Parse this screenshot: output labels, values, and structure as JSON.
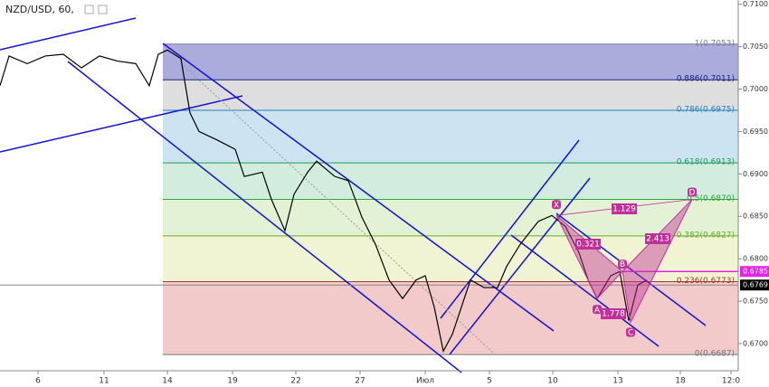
{
  "chart_data": {
    "type": "line",
    "title": "NZD/USD, 60,",
    "color": "#000000",
    "x": [
      0,
      1,
      3,
      5,
      7,
      9,
      11,
      13,
      15,
      16.5,
      17.5,
      18.5,
      20,
      21,
      22,
      24,
      26,
      27,
      29,
      30,
      31.5,
      32.5,
      34,
      35,
      37,
      38.5,
      40,
      41.5,
      43,
      44.5,
      46,
      47,
      48,
      49,
      50,
      51,
      52,
      53.5,
      55,
      56,
      57.5,
      59.5,
      61,
      62.5,
      64,
      65,
      66,
      67.5,
      68.5,
      69.5,
      70.5,
      71.5
    ],
    "values": [
      0.7004,
      0.7039,
      0.703,
      0.7039,
      0.7041,
      0.7025,
      0.7039,
      0.7033,
      0.703,
      0.7004,
      0.7041,
      0.7046,
      0.7036,
      0.6972,
      0.695,
      0.694,
      0.6929,
      0.6897,
      0.6902,
      0.687,
      0.6833,
      0.6876,
      0.6902,
      0.6915,
      0.6897,
      0.6892,
      0.6849,
      0.6817,
      0.6775,
      0.6753,
      0.6775,
      0.678,
      0.6743,
      0.6691,
      0.6711,
      0.6743,
      0.6775,
      0.6766,
      0.6766,
      0.6791,
      0.6817,
      0.6844,
      0.6851,
      0.6838,
      0.6807,
      0.6775,
      0.6753,
      0.678,
      0.6785,
      0.6727,
      0.6769,
      0.6775
    ],
    "xlim": [
      0,
      81.6
    ],
    "ylim": [
      0.6668,
      0.7105
    ],
    "xticks": [
      {
        "value": 4.2,
        "label": "6"
      },
      {
        "value": 11.5,
        "label": "11"
      },
      {
        "value": 18.5,
        "label": "14"
      },
      {
        "value": 25.7,
        "label": "19"
      },
      {
        "value": 32.7,
        "label": "22"
      },
      {
        "value": 39.8,
        "label": "27"
      },
      {
        "value": 47,
        "label": "Июл"
      },
      {
        "value": 54.1,
        "label": "5"
      },
      {
        "value": 61.1,
        "label": "10"
      },
      {
        "value": 68.3,
        "label": "13"
      },
      {
        "value": 75.2,
        "label": "18"
      },
      {
        "value": 80.8,
        "label": "12:0"
      }
    ],
    "yticks": [
      {
        "value": 0.67,
        "label": "0.6700"
      },
      {
        "value": 0.675,
        "label": "0.6750"
      },
      {
        "value": 0.68,
        "label": "0.6800"
      },
      {
        "value": 0.685,
        "label": "0.6850"
      },
      {
        "value": 0.69,
        "label": "0.6900"
      },
      {
        "value": 0.695,
        "label": "0.6950"
      },
      {
        "value": 0.7,
        "label": "0.7000"
      },
      {
        "value": 0.705,
        "label": "0.7050"
      },
      {
        "value": 0.71,
        "label": "0.7100"
      }
    ],
    "fib_levels": [
      {
        "label": "1(0.7053)",
        "value": 0.7053,
        "color": "#7a7a9a"
      },
      {
        "label": "0.886(0.7011)",
        "value": 0.7011,
        "color": "#1a237e"
      },
      {
        "label": "0.786(0.6975)",
        "value": 0.6975,
        "color": "#2a7fb5"
      },
      {
        "label": "0.618(0.6913)",
        "value": 0.6913,
        "color": "#1e9e55"
      },
      {
        "label": "0.5(0.6870)",
        "value": 0.687,
        "color": "#2fa63a"
      },
      {
        "label": "0.382(0.6827)",
        "value": 0.6827,
        "color": "#6aaa2a"
      },
      {
        "label": "0.236(0.6773)",
        "value": 0.6773,
        "color": "#a03a2a"
      },
      {
        "label": "0(0.6687)",
        "value": 0.6687,
        "color": "#777777"
      }
    ],
    "band_colors": [
      "#a3a3d8",
      "#dadada",
      "#c6e1f1",
      "#cdebd9",
      "#e0f1cf",
      "#eef3cd",
      "#f1c4c4"
    ],
    "price_markers": [
      {
        "value": 0.6785,
        "label": "0.6785",
        "color": "#e026e0"
      },
      {
        "value": 0.6769,
        "label": "0.6769",
        "color": "#000000"
      }
    ],
    "pattern_color": "#c0309a",
    "pattern_points": [
      {
        "label": "X",
        "x": 61.5,
        "y": 0.6851
      },
      {
        "label": "A",
        "x": 66.0,
        "y": 0.6753
      },
      {
        "label": "B",
        "x": 68.8,
        "y": 0.6785
      },
      {
        "label": "C",
        "x": 69.7,
        "y": 0.6725
      },
      {
        "label": "D",
        "x": 76.5,
        "y": 0.687
      }
    ],
    "pattern_ratios": [
      "1.129",
      "0.321",
      "2.413",
      "1.778"
    ]
  }
}
